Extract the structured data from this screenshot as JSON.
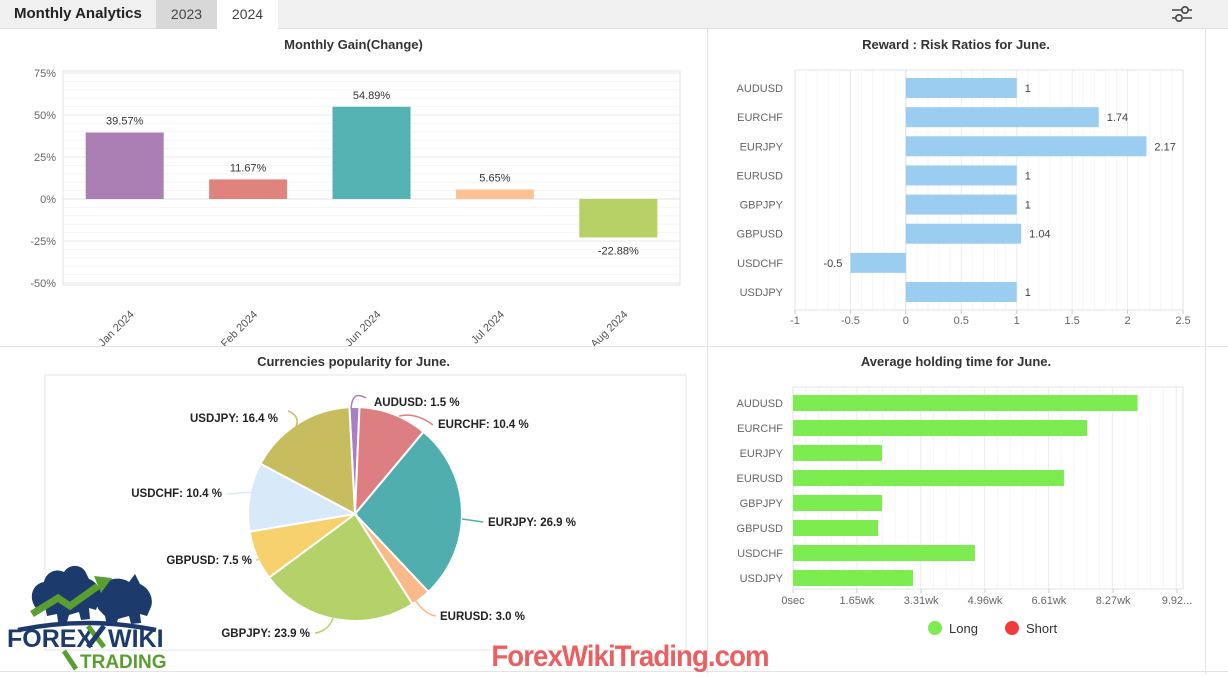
{
  "header": {
    "title": "Monthly Analytics",
    "tabs": [
      {
        "label": "2023",
        "active": false
      },
      {
        "label": "2024",
        "active": true
      }
    ],
    "filter_icon": "sliders-icon"
  },
  "chart_data": [
    {
      "id": "monthly_gain",
      "type": "bar",
      "title": "Monthly Gain(Change)",
      "categories": [
        "Jan 2024",
        "Feb 2024",
        "Jun 2024",
        "Jul 2024",
        "Aug 2024"
      ],
      "values": [
        39.57,
        11.67,
        54.89,
        5.65,
        -22.88
      ],
      "value_labels": [
        "39.57%",
        "11.67%",
        "54.89%",
        "5.65%",
        "-22.88%"
      ],
      "bar_colors": [
        "#ab7fb3",
        "#e0837f",
        "#54b2b2",
        "#fcc295",
        "#b8d166"
      ],
      "ylim": [
        -50,
        75
      ],
      "yticks": [
        75,
        50,
        25,
        0,
        -25,
        -50
      ],
      "ytick_labels": [
        "75%",
        "50%",
        "25%",
        "0%",
        "-25%",
        "-50%"
      ],
      "grid": true
    },
    {
      "id": "reward_risk",
      "type": "bar-horizontal",
      "title": "Reward : Risk Ratios for June.",
      "categories": [
        "AUDUSD",
        "EURCHF",
        "EURJPY",
        "EURUSD",
        "GBPJPY",
        "GBPUSD",
        "USDCHF",
        "USDJPY"
      ],
      "values": [
        1,
        1.74,
        2.17,
        1,
        1,
        1.04,
        -0.5,
        1
      ],
      "value_labels": [
        "1",
        "1.74",
        "2.17",
        "1",
        "1",
        "1.04",
        "-0.5",
        "1"
      ],
      "bar_color": "#9bcdf0",
      "xlim": [
        -1,
        2.5
      ],
      "xticks": [
        -1,
        -0.5,
        0,
        0.5,
        1,
        1.5,
        2,
        2.5
      ],
      "xtick_labels": [
        "-1",
        "-0.5",
        "0",
        "0.5",
        "1",
        "1.5",
        "2",
        "2.5"
      ],
      "grid": true
    },
    {
      "id": "currencies_popularity",
      "type": "pie",
      "title": "Currencies popularity for June.",
      "start_angle_deg": -3,
      "slices": [
        {
          "name": "AUDUSD",
          "label": "AUDUSD: 1.5 %",
          "value": 1.5,
          "color": "#a97fc4"
        },
        {
          "name": "EURCHF",
          "label": "EURCHF: 10.4 %",
          "value": 10.4,
          "color": "#dd7e82"
        },
        {
          "name": "EURJPY",
          "label": "EURJPY: 26.9 %",
          "value": 26.9,
          "color": "#50aeae"
        },
        {
          "name": "EURUSD",
          "label": "EURUSD: 3.0 %",
          "value": 3.0,
          "color": "#f9b98b"
        },
        {
          "name": "GBPJPY",
          "label": "GBPJPY: 23.9 %",
          "value": 23.9,
          "color": "#b5d169"
        },
        {
          "name": "GBPUSD",
          "label": "GBPUSD: 7.5 %",
          "value": 7.5,
          "color": "#f6d16e"
        },
        {
          "name": "USDCHF",
          "label": "USDCHF: 10.4 %",
          "value": 10.4,
          "color": "#d8e9f9"
        },
        {
          "name": "USDJPY",
          "label": "USDJPY: 16.4 %",
          "value": 16.4,
          "color": "#c7bd5f"
        }
      ]
    },
    {
      "id": "holding_time",
      "type": "bar-horizontal",
      "title": "Average holding time for June.",
      "categories": [
        "AUDUSD",
        "EURCHF",
        "EURJPY",
        "EURUSD",
        "GBPJPY",
        "GBPUSD",
        "USDCHF",
        "USDJPY"
      ],
      "values_wk": [
        8.9,
        7.6,
        2.3,
        7.0,
        2.3,
        2.2,
        4.7,
        3.1
      ],
      "unit": "wk",
      "bar_color": "#7dec50",
      "xlim_wk": [
        0,
        9.92
      ],
      "xticks_wk": [
        0,
        1.65,
        3.31,
        4.96,
        6.61,
        8.27,
        9.92
      ],
      "xtick_labels": [
        "0sec",
        "1.65wk",
        "3.31wk",
        "4.96wk",
        "6.61wk",
        "8.27wk",
        "9.92..."
      ],
      "legend": [
        {
          "label": "Long",
          "color": "#7dec50"
        },
        {
          "label": "Short",
          "color": "#f23c3c"
        }
      ],
      "grid": true
    }
  ],
  "branding": {
    "logo": {
      "word1": "FOREX",
      "word2": "WIKI",
      "word3": "TRADING",
      "navy": "#1d3a6c",
      "green": "#5a9e32"
    },
    "watermark": {
      "text": "ForexWikiTrading.com",
      "color": "#e86060"
    }
  }
}
